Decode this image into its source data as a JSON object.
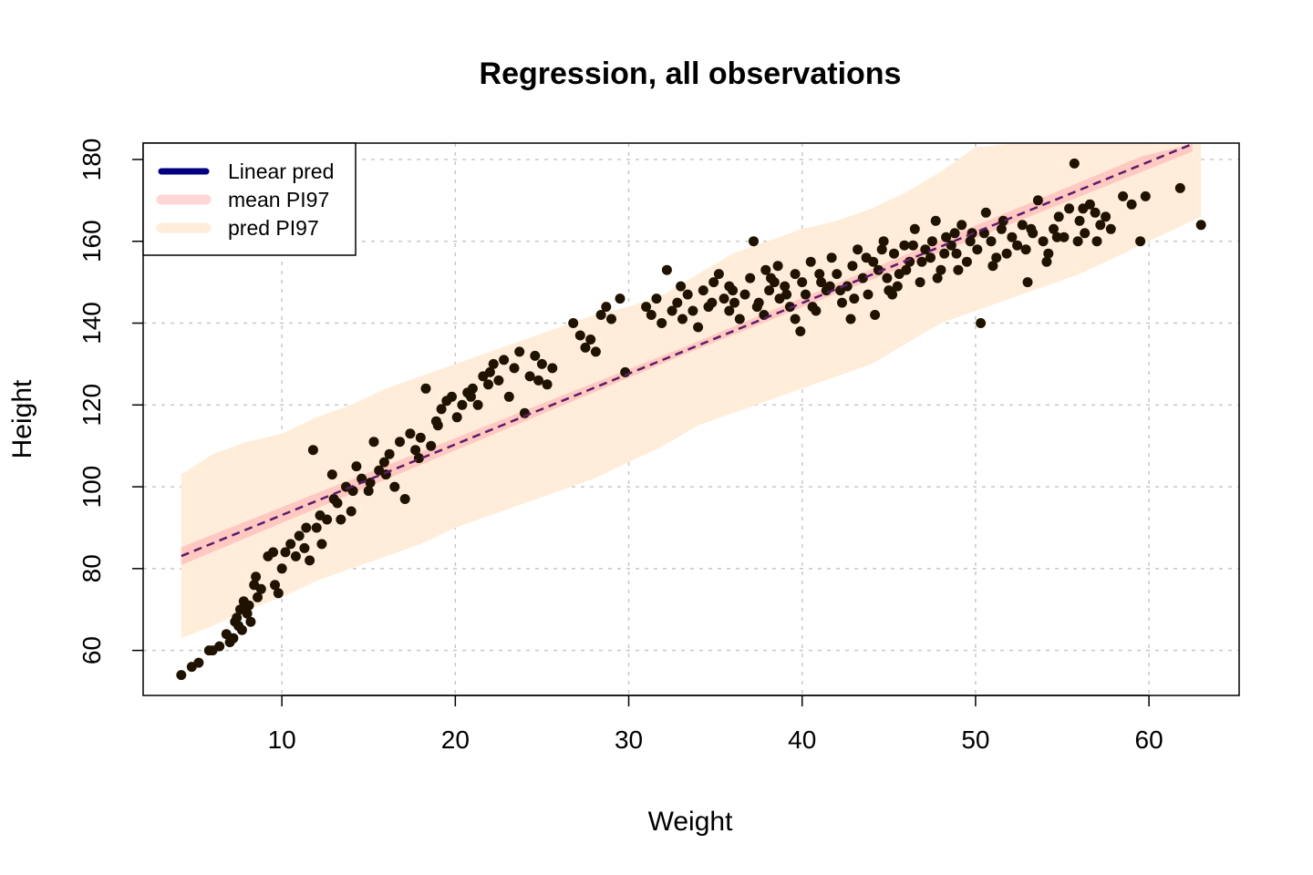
{
  "chart_data": {
    "type": "scatter",
    "title": "Regression, all observations",
    "xlabel": "Weight",
    "ylabel": "Height",
    "xlim": [
      2.0,
      65.2
    ],
    "ylim": [
      49.0,
      184.0
    ],
    "xticks": [
      10,
      20,
      30,
      40,
      50,
      60
    ],
    "yticks": [
      60,
      80,
      100,
      120,
      140,
      160,
      180
    ],
    "grid": true,
    "legend_position": "top-left",
    "legend": [
      {
        "label": "Linear pred",
        "color": "#000080",
        "key": "linear"
      },
      {
        "label": "mean PI97",
        "color": "#ffd7d7",
        "key": "mean_band"
      },
      {
        "label": "pred PI97",
        "color": "#ffedd9",
        "key": "pred_band"
      }
    ],
    "regression": {
      "slope": 1.73,
      "intercept": 75.8,
      "x_range": [
        4.2,
        62.5
      ],
      "line_color": "#5a1e6a",
      "mean_band_halfwidth": [
        2.2,
        0.9,
        2.0
      ]
    },
    "pred_band": {
      "color": "#ffedd9",
      "x": [
        4.2,
        6.0,
        8.0,
        10.0,
        12.0,
        14.0,
        16.0,
        18.0,
        20.0,
        22.0,
        24.0,
        26.0,
        28.0,
        30.0,
        32.0,
        34.0,
        36.0,
        38.0,
        40.0,
        42.0,
        44.0,
        46.0,
        48.0,
        50.0,
        52.0,
        54.0,
        56.0,
        58.0,
        60.0,
        63.0
      ],
      "upper": [
        103,
        108,
        111,
        113,
        117,
        120,
        124,
        127,
        130,
        133,
        136,
        139,
        142,
        144,
        147,
        152,
        157,
        160,
        163,
        165,
        168,
        172,
        177,
        183,
        185,
        185,
        185,
        185,
        185,
        185
      ],
      "lower": [
        63,
        66,
        70,
        73,
        77,
        80,
        83,
        86,
        90,
        93,
        96,
        99,
        102,
        106,
        110,
        115,
        118,
        121,
        124,
        127,
        130,
        135,
        140,
        143,
        146,
        149,
        152,
        156,
        160,
        166
      ]
    },
    "point_color": "#1f1300",
    "points": [
      [
        4.2,
        54
      ],
      [
        4.8,
        56
      ],
      [
        5.2,
        57
      ],
      [
        5.8,
        60
      ],
      [
        6.0,
        60
      ],
      [
        6.4,
        61
      ],
      [
        6.8,
        64
      ],
      [
        7.0,
        62
      ],
      [
        7.2,
        63
      ],
      [
        7.3,
        67
      ],
      [
        7.4,
        68
      ],
      [
        7.5,
        66
      ],
      [
        7.6,
        70
      ],
      [
        7.8,
        72
      ],
      [
        8.0,
        69
      ],
      [
        8.1,
        71
      ],
      [
        8.2,
        67
      ],
      [
        8.4,
        76
      ],
      [
        8.5,
        78
      ],
      [
        8.8,
        75
      ],
      [
        9.2,
        83
      ],
      [
        9.5,
        84
      ],
      [
        9.8,
        74
      ],
      [
        10.0,
        80
      ],
      [
        10.5,
        86
      ],
      [
        10.8,
        83
      ],
      [
        11.0,
        88
      ],
      [
        11.3,
        85
      ],
      [
        11.6,
        82
      ],
      [
        11.8,
        109
      ],
      [
        12.0,
        90
      ],
      [
        12.3,
        86
      ],
      [
        12.6,
        92
      ],
      [
        12.9,
        103
      ],
      [
        13.2,
        96
      ],
      [
        13.4,
        92
      ],
      [
        13.7,
        100
      ],
      [
        14.0,
        94
      ],
      [
        14.3,
        105
      ],
      [
        14.6,
        102
      ],
      [
        15.0,
        99
      ],
      [
        15.3,
        111
      ],
      [
        15.6,
        104
      ],
      [
        15.9,
        106
      ],
      [
        16.2,
        108
      ],
      [
        16.5,
        100
      ],
      [
        16.8,
        111
      ],
      [
        17.1,
        97
      ],
      [
        17.4,
        113
      ],
      [
        17.7,
        109
      ],
      [
        18.0,
        112
      ],
      [
        18.3,
        124
      ],
      [
        18.6,
        110
      ],
      [
        18.9,
        116
      ],
      [
        19.2,
        119
      ],
      [
        19.5,
        121
      ],
      [
        19.8,
        122
      ],
      [
        20.1,
        117
      ],
      [
        20.4,
        120
      ],
      [
        20.7,
        123
      ],
      [
        21.0,
        124
      ],
      [
        21.3,
        120
      ],
      [
        21.6,
        127
      ],
      [
        21.9,
        125
      ],
      [
        22.2,
        130
      ],
      [
        22.5,
        126
      ],
      [
        22.8,
        131
      ],
      [
        23.1,
        122
      ],
      [
        23.4,
        129
      ],
      [
        23.7,
        133
      ],
      [
        24.0,
        118
      ],
      [
        24.3,
        127
      ],
      [
        24.6,
        132
      ],
      [
        25.0,
        130
      ],
      [
        25.3,
        125
      ],
      [
        25.6,
        129
      ],
      [
        26.8,
        140
      ],
      [
        27.2,
        137
      ],
      [
        27.5,
        134
      ],
      [
        27.8,
        136
      ],
      [
        28.1,
        133
      ],
      [
        28.4,
        142
      ],
      [
        28.7,
        144
      ],
      [
        29.0,
        141
      ],
      [
        29.5,
        146
      ],
      [
        29.8,
        128
      ],
      [
        31.0,
        144
      ],
      [
        31.3,
        142
      ],
      [
        31.6,
        146
      ],
      [
        31.9,
        140
      ],
      [
        32.2,
        153
      ],
      [
        32.5,
        143
      ],
      [
        32.8,
        145
      ],
      [
        33.1,
        141
      ],
      [
        33.4,
        147
      ],
      [
        33.7,
        143
      ],
      [
        34.0,
        139
      ],
      [
        34.3,
        148
      ],
      [
        34.6,
        144
      ],
      [
        34.9,
        150
      ],
      [
        35.2,
        152
      ],
      [
        35.5,
        146
      ],
      [
        35.8,
        149
      ],
      [
        36.1,
        145
      ],
      [
        36.4,
        141
      ],
      [
        36.7,
        147
      ],
      [
        37.0,
        151
      ],
      [
        37.2,
        160
      ],
      [
        37.5,
        145
      ],
      [
        37.8,
        142
      ],
      [
        38.1,
        148
      ],
      [
        38.4,
        150
      ],
      [
        38.7,
        146
      ],
      [
        39.0,
        149
      ],
      [
        39.3,
        144
      ],
      [
        39.6,
        152
      ],
      [
        39.9,
        138
      ],
      [
        40.2,
        147
      ],
      [
        40.5,
        155
      ],
      [
        40.8,
        143
      ],
      [
        41.1,
        150
      ],
      [
        41.4,
        148
      ],
      [
        41.7,
        156
      ],
      [
        42.0,
        152
      ],
      [
        42.3,
        145
      ],
      [
        42.6,
        149
      ],
      [
        42.9,
        154
      ],
      [
        43.2,
        158
      ],
      [
        43.5,
        151
      ],
      [
        43.8,
        147
      ],
      [
        44.1,
        155
      ],
      [
        44.4,
        153
      ],
      [
        44.7,
        160
      ],
      [
        45.0,
        148
      ],
      [
        45.3,
        157
      ],
      [
        45.6,
        152
      ],
      [
        45.9,
        159
      ],
      [
        46.2,
        155
      ],
      [
        46.5,
        163
      ],
      [
        46.8,
        150
      ],
      [
        47.1,
        158
      ],
      [
        47.4,
        156
      ],
      [
        47.7,
        165
      ],
      [
        48.0,
        153
      ],
      [
        48.3,
        161
      ],
      [
        48.6,
        159
      ],
      [
        48.9,
        157
      ],
      [
        49.2,
        164
      ],
      [
        49.5,
        155
      ],
      [
        49.8,
        162
      ],
      [
        50.1,
        158
      ],
      [
        50.3,
        140
      ],
      [
        50.6,
        167
      ],
      [
        50.9,
        160
      ],
      [
        51.2,
        156
      ],
      [
        51.5,
        163
      ],
      [
        51.8,
        157
      ],
      [
        52.1,
        161
      ],
      [
        52.4,
        159
      ],
      [
        52.7,
        164
      ],
      [
        53.0,
        150
      ],
      [
        53.3,
        162
      ],
      [
        53.6,
        170
      ],
      [
        53.9,
        160
      ],
      [
        54.2,
        157
      ],
      [
        54.5,
        163
      ],
      [
        54.8,
        166
      ],
      [
        55.1,
        161
      ],
      [
        55.4,
        168
      ],
      [
        55.7,
        179
      ],
      [
        56.0,
        165
      ],
      [
        56.3,
        162
      ],
      [
        56.6,
        169
      ],
      [
        56.9,
        167
      ],
      [
        57.2,
        164
      ],
      [
        57.5,
        166
      ],
      [
        58.5,
        171
      ],
      [
        59.0,
        169
      ],
      [
        59.5,
        160
      ],
      [
        59.8,
        171
      ],
      [
        61.8,
        173
      ],
      [
        63.0,
        164
      ],
      [
        38.2,
        151
      ],
      [
        39.1,
        147
      ],
      [
        41.0,
        152
      ],
      [
        43.0,
        146
      ],
      [
        44.9,
        151
      ],
      [
        46.0,
        153
      ],
      [
        47.5,
        160
      ],
      [
        48.8,
        162
      ],
      [
        36.0,
        148
      ],
      [
        37.9,
        153
      ],
      [
        40.0,
        150
      ],
      [
        42.2,
        148
      ],
      [
        45.5,
        149
      ],
      [
        34.8,
        145
      ],
      [
        33.0,
        149
      ],
      [
        46.9,
        155
      ],
      [
        47.8,
        151
      ],
      [
        49.7,
        160
      ],
      [
        51.0,
        154
      ],
      [
        52.9,
        158
      ],
      [
        54.1,
        155
      ],
      [
        55.9,
        160
      ],
      [
        57.8,
        163
      ],
      [
        39.6,
        141
      ],
      [
        42.8,
        141
      ],
      [
        44.2,
        142
      ],
      [
        45.2,
        147
      ],
      [
        43.7,
        156
      ],
      [
        41.6,
        149
      ],
      [
        40.6,
        144
      ],
      [
        38.6,
        154
      ],
      [
        37.4,
        144
      ],
      [
        35.8,
        143
      ],
      [
        44.6,
        158
      ],
      [
        46.4,
        159
      ],
      [
        48.2,
        157
      ],
      [
        49.0,
        153
      ],
      [
        50.5,
        162
      ],
      [
        51.6,
        165
      ],
      [
        53.2,
        163
      ],
      [
        54.7,
        161
      ],
      [
        56.2,
        168
      ],
      [
        57.0,
        160
      ],
      [
        24.8,
        126
      ],
      [
        22.0,
        128
      ],
      [
        20.9,
        122
      ],
      [
        19.0,
        115
      ],
      [
        17.9,
        107
      ],
      [
        16.0,
        103
      ],
      [
        15.1,
        101
      ],
      [
        14.1,
        99
      ],
      [
        13.0,
        97
      ],
      [
        12.2,
        93
      ],
      [
        11.4,
        90
      ],
      [
        10.2,
        84
      ],
      [
        9.6,
        76
      ],
      [
        8.6,
        73
      ],
      [
        7.7,
        65
      ]
    ]
  }
}
